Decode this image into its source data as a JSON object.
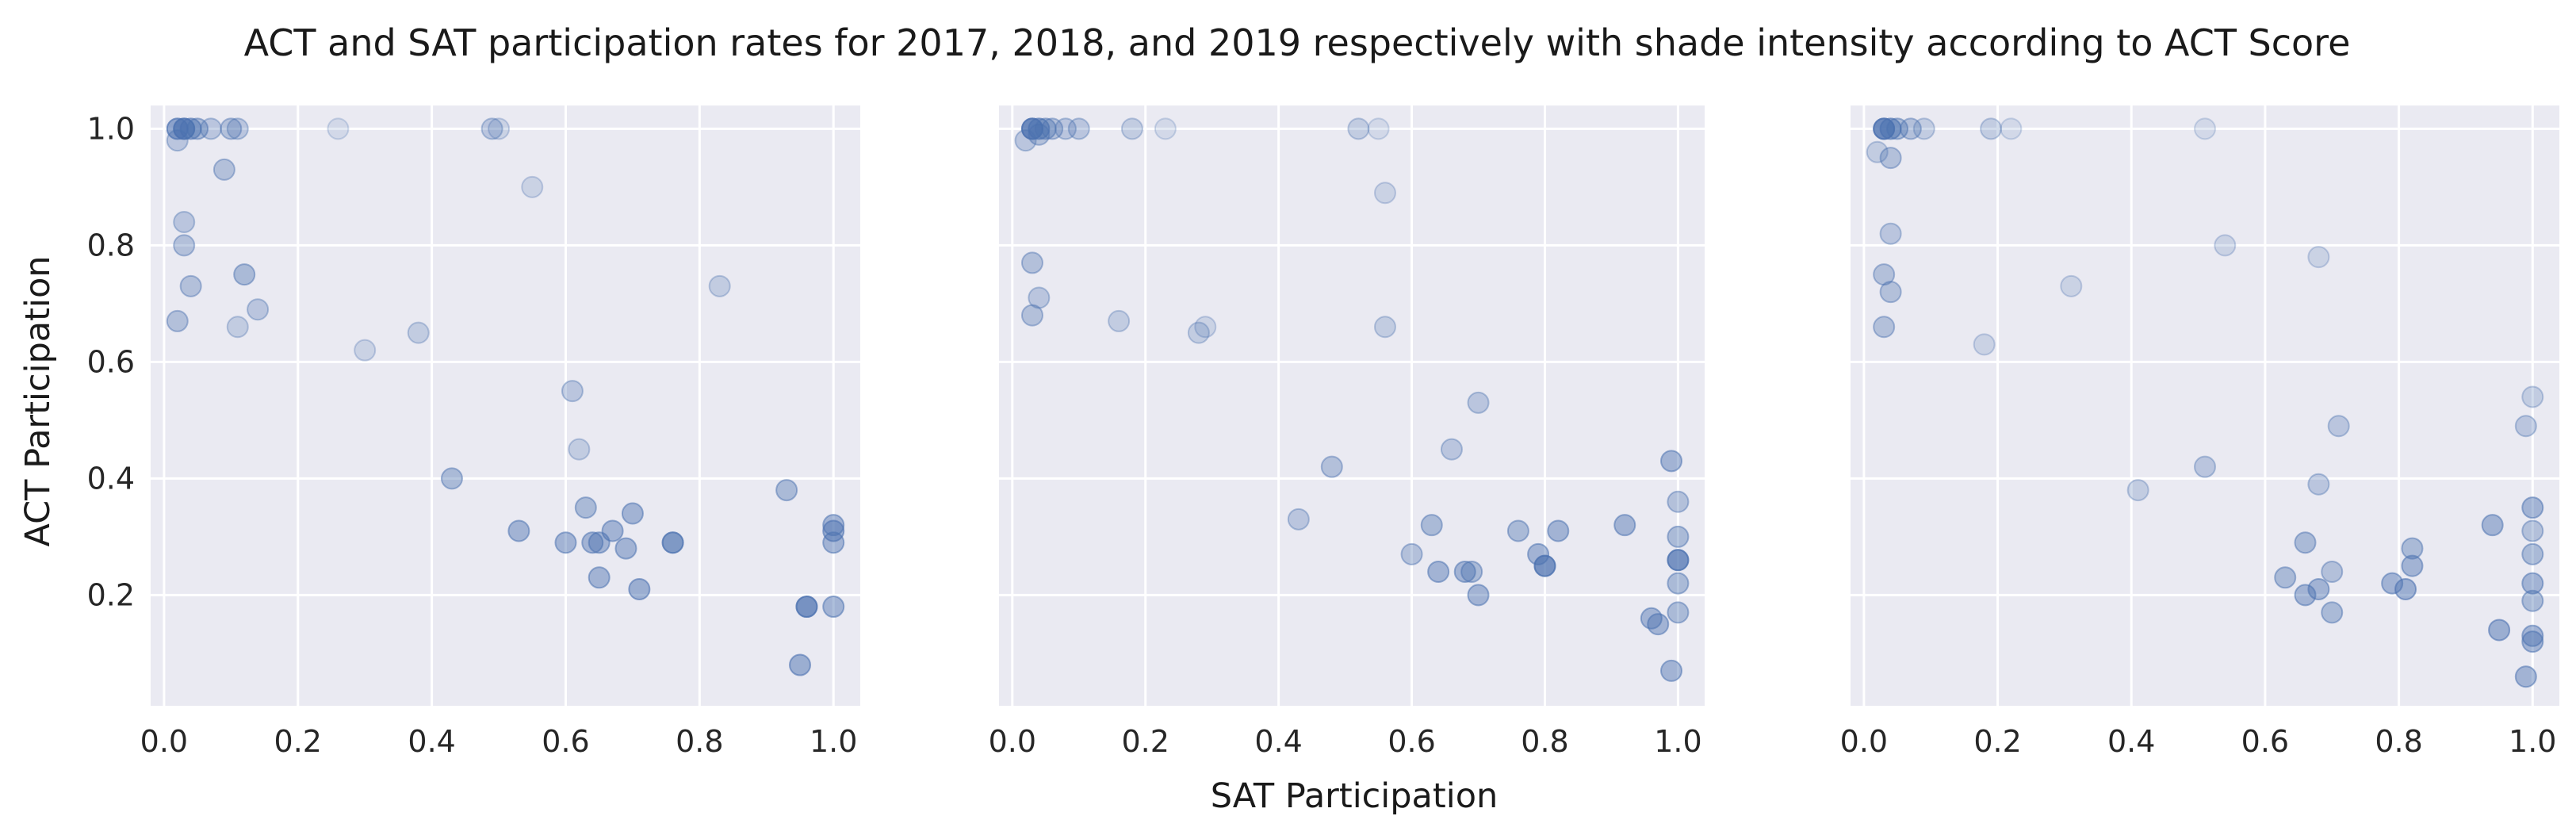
{
  "figure": {
    "title": "ACT and SAT participation rates for 2017, 2018, and 2019 respectively with shade intensity according to ACT Score",
    "xlabel": "SAT Participation",
    "ylabel": "ACT Participation"
  },
  "colors": {
    "point": "#4c72b0",
    "panel_bg": "#eaeaf2",
    "grid": "#ffffff"
  },
  "chart_data": [
    {
      "type": "scatter",
      "xlim": [
        -0.02,
        1.04
      ],
      "ylim": [
        0.01,
        1.04
      ],
      "xticks": [
        0.0,
        0.2,
        0.4,
        0.6,
        0.8,
        1.0
      ],
      "xtick_labels": [
        "0.0",
        "0.2",
        "0.4",
        "0.6",
        "0.8",
        "1.0"
      ],
      "yticks": [
        0.2,
        0.4,
        0.6,
        0.8,
        1.0
      ],
      "ytick_labels": [
        "0.2",
        "0.4",
        "0.6",
        "0.8",
        "1.0"
      ],
      "grid": true,
      "points": [
        {
          "x": 0.02,
          "y": 1.0,
          "alpha": 0.6
        },
        {
          "x": 0.03,
          "y": 1.0,
          "alpha": 0.55
        },
        {
          "x": 0.04,
          "y": 1.0,
          "alpha": 0.5
        },
        {
          "x": 0.03,
          "y": 1.0,
          "alpha": 0.45
        },
        {
          "x": 0.05,
          "y": 1.0,
          "alpha": 0.4
        },
        {
          "x": 0.07,
          "y": 1.0,
          "alpha": 0.3
        },
        {
          "x": 0.1,
          "y": 1.0,
          "alpha": 0.35
        },
        {
          "x": 0.11,
          "y": 1.0,
          "alpha": 0.3
        },
        {
          "x": 0.26,
          "y": 1.0,
          "alpha": 0.15
        },
        {
          "x": 0.49,
          "y": 1.0,
          "alpha": 0.3
        },
        {
          "x": 0.5,
          "y": 1.0,
          "alpha": 0.2
        },
        {
          "x": 0.02,
          "y": 0.98,
          "alpha": 0.3
        },
        {
          "x": 0.09,
          "y": 0.93,
          "alpha": 0.35
        },
        {
          "x": 0.55,
          "y": 0.9,
          "alpha": 0.2
        },
        {
          "x": 0.03,
          "y": 0.84,
          "alpha": 0.3
        },
        {
          "x": 0.03,
          "y": 0.8,
          "alpha": 0.35
        },
        {
          "x": 0.12,
          "y": 0.75,
          "alpha": 0.4
        },
        {
          "x": 0.04,
          "y": 0.73,
          "alpha": 0.35
        },
        {
          "x": 0.83,
          "y": 0.73,
          "alpha": 0.25
        },
        {
          "x": 0.14,
          "y": 0.69,
          "alpha": 0.3
        },
        {
          "x": 0.02,
          "y": 0.67,
          "alpha": 0.35
        },
        {
          "x": 0.11,
          "y": 0.66,
          "alpha": 0.25
        },
        {
          "x": 0.38,
          "y": 0.65,
          "alpha": 0.25
        },
        {
          "x": 0.3,
          "y": 0.62,
          "alpha": 0.2
        },
        {
          "x": 0.61,
          "y": 0.55,
          "alpha": 0.3
        },
        {
          "x": 0.62,
          "y": 0.45,
          "alpha": 0.25
        },
        {
          "x": 0.43,
          "y": 0.4,
          "alpha": 0.4
        },
        {
          "x": 0.93,
          "y": 0.38,
          "alpha": 0.4
        },
        {
          "x": 0.63,
          "y": 0.35,
          "alpha": 0.4
        },
        {
          "x": 0.7,
          "y": 0.34,
          "alpha": 0.45
        },
        {
          "x": 1.0,
          "y": 0.32,
          "alpha": 0.45
        },
        {
          "x": 1.0,
          "y": 0.31,
          "alpha": 0.5
        },
        {
          "x": 0.53,
          "y": 0.31,
          "alpha": 0.45
        },
        {
          "x": 0.67,
          "y": 0.31,
          "alpha": 0.45
        },
        {
          "x": 0.6,
          "y": 0.29,
          "alpha": 0.45
        },
        {
          "x": 0.64,
          "y": 0.29,
          "alpha": 0.45
        },
        {
          "x": 0.65,
          "y": 0.29,
          "alpha": 0.45
        },
        {
          "x": 0.76,
          "y": 0.29,
          "alpha": 0.45
        },
        {
          "x": 0.76,
          "y": 0.29,
          "alpha": 0.4
        },
        {
          "x": 1.0,
          "y": 0.29,
          "alpha": 0.45
        },
        {
          "x": 0.69,
          "y": 0.28,
          "alpha": 0.45
        },
        {
          "x": 0.65,
          "y": 0.23,
          "alpha": 0.45
        },
        {
          "x": 0.71,
          "y": 0.21,
          "alpha": 0.5
        },
        {
          "x": 0.96,
          "y": 0.18,
          "alpha": 0.5
        },
        {
          "x": 0.96,
          "y": 0.18,
          "alpha": 0.45
        },
        {
          "x": 1.0,
          "y": 0.18,
          "alpha": 0.45
        },
        {
          "x": 0.95,
          "y": 0.08,
          "alpha": 0.5
        }
      ]
    },
    {
      "type": "scatter",
      "xlim": [
        -0.02,
        1.04
      ],
      "ylim": [
        0.01,
        1.04
      ],
      "xticks": [
        0.0,
        0.2,
        0.4,
        0.6,
        0.8,
        1.0
      ],
      "xtick_labels": [
        "0.0",
        "0.2",
        "0.4",
        "0.6",
        "0.8",
        "1.0"
      ],
      "grid": true,
      "points": [
        {
          "x": 0.03,
          "y": 1.0,
          "alpha": 0.6
        },
        {
          "x": 0.04,
          "y": 1.0,
          "alpha": 0.55
        },
        {
          "x": 0.03,
          "y": 1.0,
          "alpha": 0.5
        },
        {
          "x": 0.05,
          "y": 1.0,
          "alpha": 0.4
        },
        {
          "x": 0.06,
          "y": 1.0,
          "alpha": 0.35
        },
        {
          "x": 0.08,
          "y": 1.0,
          "alpha": 0.3
        },
        {
          "x": 0.1,
          "y": 1.0,
          "alpha": 0.3
        },
        {
          "x": 0.18,
          "y": 1.0,
          "alpha": 0.25
        },
        {
          "x": 0.23,
          "y": 1.0,
          "alpha": 0.15
        },
        {
          "x": 0.52,
          "y": 1.0,
          "alpha": 0.25
        },
        {
          "x": 0.55,
          "y": 1.0,
          "alpha": 0.15
        },
        {
          "x": 0.02,
          "y": 0.98,
          "alpha": 0.3
        },
        {
          "x": 0.04,
          "y": 0.99,
          "alpha": 0.35
        },
        {
          "x": 0.56,
          "y": 0.89,
          "alpha": 0.2
        },
        {
          "x": 0.03,
          "y": 0.77,
          "alpha": 0.35
        },
        {
          "x": 0.04,
          "y": 0.71,
          "alpha": 0.3
        },
        {
          "x": 0.03,
          "y": 0.68,
          "alpha": 0.35
        },
        {
          "x": 0.16,
          "y": 0.67,
          "alpha": 0.25
        },
        {
          "x": 0.56,
          "y": 0.66,
          "alpha": 0.25
        },
        {
          "x": 0.29,
          "y": 0.66,
          "alpha": 0.2
        },
        {
          "x": 0.28,
          "y": 0.65,
          "alpha": 0.25
        },
        {
          "x": 0.7,
          "y": 0.53,
          "alpha": 0.3
        },
        {
          "x": 0.66,
          "y": 0.45,
          "alpha": 0.3
        },
        {
          "x": 0.99,
          "y": 0.43,
          "alpha": 0.45
        },
        {
          "x": 0.48,
          "y": 0.42,
          "alpha": 0.35
        },
        {
          "x": 1.0,
          "y": 0.36,
          "alpha": 0.35
        },
        {
          "x": 0.43,
          "y": 0.33,
          "alpha": 0.3
        },
        {
          "x": 0.63,
          "y": 0.32,
          "alpha": 0.4
        },
        {
          "x": 0.92,
          "y": 0.32,
          "alpha": 0.45
        },
        {
          "x": 0.76,
          "y": 0.31,
          "alpha": 0.4
        },
        {
          "x": 0.82,
          "y": 0.31,
          "alpha": 0.45
        },
        {
          "x": 1.0,
          "y": 0.3,
          "alpha": 0.4
        },
        {
          "x": 0.6,
          "y": 0.27,
          "alpha": 0.35
        },
        {
          "x": 0.79,
          "y": 0.27,
          "alpha": 0.45
        },
        {
          "x": 1.0,
          "y": 0.26,
          "alpha": 0.5
        },
        {
          "x": 1.0,
          "y": 0.26,
          "alpha": 0.45
        },
        {
          "x": 0.8,
          "y": 0.25,
          "alpha": 0.5
        },
        {
          "x": 0.8,
          "y": 0.25,
          "alpha": 0.45
        },
        {
          "x": 0.64,
          "y": 0.24,
          "alpha": 0.45
        },
        {
          "x": 0.68,
          "y": 0.24,
          "alpha": 0.45
        },
        {
          "x": 0.69,
          "y": 0.24,
          "alpha": 0.4
        },
        {
          "x": 1.0,
          "y": 0.22,
          "alpha": 0.4
        },
        {
          "x": 0.7,
          "y": 0.2,
          "alpha": 0.45
        },
        {
          "x": 1.0,
          "y": 0.17,
          "alpha": 0.4
        },
        {
          "x": 0.96,
          "y": 0.16,
          "alpha": 0.45
        },
        {
          "x": 0.97,
          "y": 0.15,
          "alpha": 0.45
        },
        {
          "x": 0.99,
          "y": 0.07,
          "alpha": 0.45
        }
      ]
    },
    {
      "type": "scatter",
      "xlim": [
        -0.02,
        1.04
      ],
      "ylim": [
        0.01,
        1.04
      ],
      "xticks": [
        0.0,
        0.2,
        0.4,
        0.6,
        0.8,
        1.0
      ],
      "xtick_labels": [
        "0.0",
        "0.2",
        "0.4",
        "0.6",
        "0.8",
        "1.0"
      ],
      "grid": true,
      "points": [
        {
          "x": 0.03,
          "y": 1.0,
          "alpha": 0.6
        },
        {
          "x": 0.04,
          "y": 1.0,
          "alpha": 0.55
        },
        {
          "x": 0.03,
          "y": 1.0,
          "alpha": 0.5
        },
        {
          "x": 0.05,
          "y": 1.0,
          "alpha": 0.4
        },
        {
          "x": 0.07,
          "y": 1.0,
          "alpha": 0.35
        },
        {
          "x": 0.09,
          "y": 1.0,
          "alpha": 0.25
        },
        {
          "x": 0.19,
          "y": 1.0,
          "alpha": 0.25
        },
        {
          "x": 0.22,
          "y": 1.0,
          "alpha": 0.15
        },
        {
          "x": 0.51,
          "y": 1.0,
          "alpha": 0.15
        },
        {
          "x": 0.02,
          "y": 0.96,
          "alpha": 0.25
        },
        {
          "x": 0.04,
          "y": 0.95,
          "alpha": 0.35
        },
        {
          "x": 0.04,
          "y": 0.82,
          "alpha": 0.3
        },
        {
          "x": 0.54,
          "y": 0.8,
          "alpha": 0.2
        },
        {
          "x": 0.68,
          "y": 0.78,
          "alpha": 0.2
        },
        {
          "x": 0.03,
          "y": 0.75,
          "alpha": 0.35
        },
        {
          "x": 0.31,
          "y": 0.73,
          "alpha": 0.2
        },
        {
          "x": 0.04,
          "y": 0.72,
          "alpha": 0.35
        },
        {
          "x": 0.03,
          "y": 0.66,
          "alpha": 0.35
        },
        {
          "x": 0.18,
          "y": 0.63,
          "alpha": 0.2
        },
        {
          "x": 1.0,
          "y": 0.54,
          "alpha": 0.25
        },
        {
          "x": 0.99,
          "y": 0.49,
          "alpha": 0.3
        },
        {
          "x": 0.71,
          "y": 0.49,
          "alpha": 0.3
        },
        {
          "x": 0.51,
          "y": 0.42,
          "alpha": 0.3
        },
        {
          "x": 0.68,
          "y": 0.39,
          "alpha": 0.3
        },
        {
          "x": 0.41,
          "y": 0.38,
          "alpha": 0.25
        },
        {
          "x": 1.0,
          "y": 0.35,
          "alpha": 0.45
        },
        {
          "x": 0.94,
          "y": 0.32,
          "alpha": 0.45
        },
        {
          "x": 1.0,
          "y": 0.31,
          "alpha": 0.35
        },
        {
          "x": 0.66,
          "y": 0.29,
          "alpha": 0.4
        },
        {
          "x": 0.82,
          "y": 0.28,
          "alpha": 0.4
        },
        {
          "x": 1.0,
          "y": 0.27,
          "alpha": 0.4
        },
        {
          "x": 0.82,
          "y": 0.25,
          "alpha": 0.45
        },
        {
          "x": 0.7,
          "y": 0.24,
          "alpha": 0.35
        },
        {
          "x": 0.63,
          "y": 0.23,
          "alpha": 0.4
        },
        {
          "x": 0.79,
          "y": 0.22,
          "alpha": 0.45
        },
        {
          "x": 1.0,
          "y": 0.22,
          "alpha": 0.45
        },
        {
          "x": 0.68,
          "y": 0.21,
          "alpha": 0.45
        },
        {
          "x": 0.81,
          "y": 0.21,
          "alpha": 0.5
        },
        {
          "x": 0.66,
          "y": 0.2,
          "alpha": 0.45
        },
        {
          "x": 1.0,
          "y": 0.19,
          "alpha": 0.4
        },
        {
          "x": 0.7,
          "y": 0.17,
          "alpha": 0.4
        },
        {
          "x": 0.95,
          "y": 0.14,
          "alpha": 0.5
        },
        {
          "x": 1.0,
          "y": 0.13,
          "alpha": 0.45
        },
        {
          "x": 1.0,
          "y": 0.12,
          "alpha": 0.45
        },
        {
          "x": 0.99,
          "y": 0.06,
          "alpha": 0.45
        }
      ]
    }
  ]
}
